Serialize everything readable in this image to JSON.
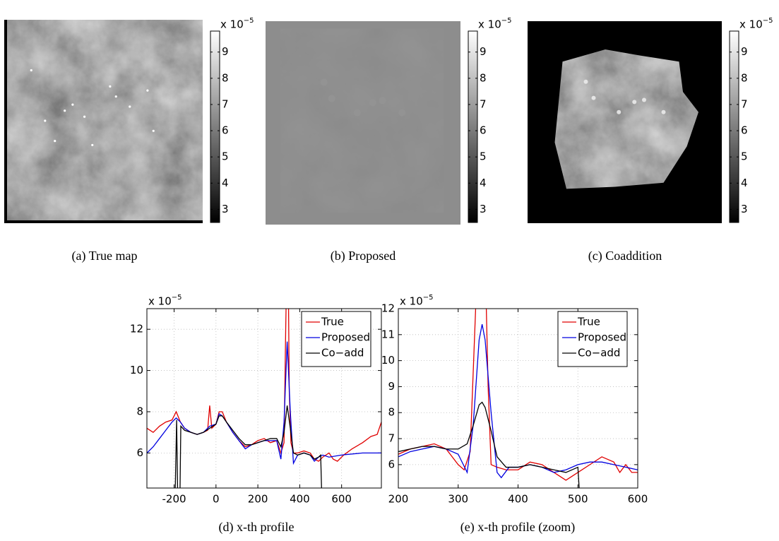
{
  "chart_data": [
    {
      "type": "image",
      "caption": "(a) True map",
      "style": "full",
      "colorbar": {
        "ylim": [
          2.5,
          9.8
        ],
        "yticks": [
          3,
          4,
          5,
          6,
          7,
          8,
          9
        ],
        "multiplier": "x 10",
        "exponent": "−5"
      }
    },
    {
      "type": "image",
      "caption": "(b) Proposed",
      "style": "blob-gray",
      "colorbar": {
        "ylim": [
          2.5,
          9.8
        ],
        "yticks": [
          3,
          4,
          5,
          6,
          7,
          8,
          9
        ],
        "multiplier": "x 10",
        "exponent": "−5"
      }
    },
    {
      "type": "image",
      "caption": "(c) Coaddition",
      "style": "blob-black",
      "colorbar": {
        "ylim": [
          2.5,
          9.8
        ],
        "yticks": [
          3,
          4,
          5,
          6,
          7,
          8,
          9
        ],
        "multiplier": "x 10",
        "exponent": "−5"
      }
    },
    {
      "type": "line",
      "caption": "(d) x-th profile",
      "multiplier": "x 10",
      "exponent": "−5",
      "xlim": [
        -330,
        790
      ],
      "ylim": [
        4.3,
        13
      ],
      "xticks": [
        -200,
        0,
        200,
        400,
        600
      ],
      "yticks": [
        6,
        8,
        10,
        12
      ],
      "grid": true,
      "legend": "upper right",
      "series": [
        {
          "name": "True",
          "color": "#e00000",
          "x": [
            -330,
            -300,
            -270,
            -240,
            -210,
            -190,
            -170,
            -150,
            -120,
            -90,
            -60,
            -40,
            -30,
            -20,
            0,
            15,
            30,
            50,
            80,
            110,
            140,
            170,
            200,
            230,
            260,
            290,
            310,
            325,
            333,
            338,
            345,
            350,
            358,
            370,
            390,
            420,
            450,
            470,
            490,
            510,
            540,
            560,
            580,
            610,
            650,
            700,
            740,
            770,
            790
          ],
          "values": [
            7.2,
            7.0,
            7.3,
            7.5,
            7.6,
            8.0,
            7.5,
            7.2,
            7.0,
            6.9,
            7.0,
            7.1,
            8.3,
            7.2,
            7.4,
            8.0,
            8.0,
            7.5,
            7.0,
            6.6,
            6.3,
            6.4,
            6.6,
            6.7,
            6.5,
            6.6,
            6.0,
            6.5,
            12,
            15,
            15,
            9,
            6.5,
            6.0,
            6.0,
            6.1,
            6.0,
            5.7,
            5.6,
            5.8,
            6.0,
            5.7,
            5.6,
            5.9,
            6.2,
            6.5,
            6.8,
            6.9,
            7.5
          ]
        },
        {
          "name": "Proposed",
          "color": "#0000e0",
          "x": [
            -330,
            -300,
            -270,
            -240,
            -210,
            -190,
            -170,
            -150,
            -120,
            -90,
            -60,
            -30,
            0,
            15,
            30,
            50,
            80,
            110,
            140,
            170,
            200,
            230,
            260,
            290,
            310,
            325,
            340,
            355,
            370,
            390,
            420,
            450,
            470,
            490,
            510,
            540,
            600,
            700,
            790
          ],
          "values": [
            6.0,
            6.3,
            6.7,
            7.1,
            7.5,
            7.7,
            7.5,
            7.2,
            7.0,
            6.9,
            7.0,
            7.3,
            7.4,
            7.9,
            7.8,
            7.5,
            7.0,
            6.6,
            6.2,
            6.4,
            6.5,
            6.6,
            6.6,
            6.6,
            5.7,
            7.5,
            11.4,
            8,
            5.5,
            5.9,
            6.0,
            5.9,
            5.6,
            5.8,
            5.9,
            5.8,
            5.9,
            6.0,
            6.0
          ]
        },
        {
          "name": "Co−add",
          "color": "#000000",
          "x": [
            -195,
            -188,
            -183,
            -172,
            -168,
            -150,
            -120,
            -90,
            -60,
            -30,
            0,
            15,
            30,
            50,
            80,
            110,
            140,
            170,
            200,
            230,
            260,
            290,
            310,
            325,
            340,
            355,
            370,
            390,
            420,
            450,
            470,
            490,
            500,
            505
          ],
          "values": [
            4.0,
            7.6,
            4.0,
            4.0,
            7.3,
            7.1,
            7.0,
            6.9,
            7.0,
            7.2,
            7.4,
            7.8,
            7.8,
            7.5,
            7.1,
            6.7,
            6.4,
            6.4,
            6.5,
            6.6,
            6.7,
            6.7,
            6.3,
            7.0,
            8.3,
            7.2,
            6.0,
            5.9,
            6.0,
            5.9,
            5.7,
            5.8,
            5.9,
            4.0
          ]
        }
      ]
    },
    {
      "type": "line",
      "caption": "(e) x-th profile (zoom)",
      "multiplier": "x 10",
      "exponent": "−5",
      "xlim": [
        200,
        600
      ],
      "ylim": [
        5.1,
        12
      ],
      "xticks": [
        200,
        300,
        400,
        500,
        600
      ],
      "yticks": [
        6,
        7,
        8,
        9,
        10,
        11,
        12
      ],
      "grid": true,
      "legend": "upper right",
      "series": [
        {
          "name": "True",
          "color": "#e00000",
          "x": [
            200,
            220,
            240,
            260,
            280,
            300,
            310,
            320,
            330,
            335,
            345,
            350,
            355,
            365,
            380,
            400,
            420,
            440,
            460,
            480,
            500,
            520,
            540,
            560,
            570,
            580,
            590,
            600
          ],
          "values": [
            6.4,
            6.6,
            6.7,
            6.8,
            6.6,
            6.0,
            5.8,
            6.5,
            12.5,
            14,
            14,
            9,
            6.0,
            5.9,
            5.8,
            5.8,
            6.1,
            6.0,
            5.7,
            5.4,
            5.7,
            6.0,
            6.3,
            6.1,
            5.7,
            6.0,
            5.7,
            5.7
          ]
        },
        {
          "name": "Proposed",
          "color": "#0000e0",
          "x": [
            200,
            220,
            240,
            260,
            280,
            300,
            315,
            325,
            335,
            340,
            345,
            355,
            365,
            372,
            385,
            400,
            420,
            440,
            460,
            480,
            500,
            520,
            540,
            560,
            580,
            600
          ],
          "values": [
            6.3,
            6.5,
            6.6,
            6.7,
            6.6,
            6.4,
            5.7,
            7.5,
            10.8,
            11.4,
            10.8,
            8,
            5.7,
            5.5,
            5.9,
            5.9,
            6.0,
            5.9,
            5.7,
            5.8,
            6.0,
            6.1,
            6.1,
            6.0,
            5.9,
            5.8
          ]
        },
        {
          "name": "Co−add",
          "color": "#000000",
          "x": [
            200,
            220,
            240,
            260,
            280,
            300,
            315,
            325,
            335,
            340,
            345,
            355,
            365,
            380,
            400,
            420,
            440,
            460,
            480,
            500,
            505
          ],
          "values": [
            6.5,
            6.6,
            6.7,
            6.7,
            6.6,
            6.6,
            6.8,
            7.5,
            8.3,
            8.4,
            8.2,
            7.3,
            6.3,
            5.9,
            5.9,
            6.0,
            5.9,
            5.8,
            5.7,
            5.9,
            4.0
          ]
        }
      ]
    }
  ]
}
